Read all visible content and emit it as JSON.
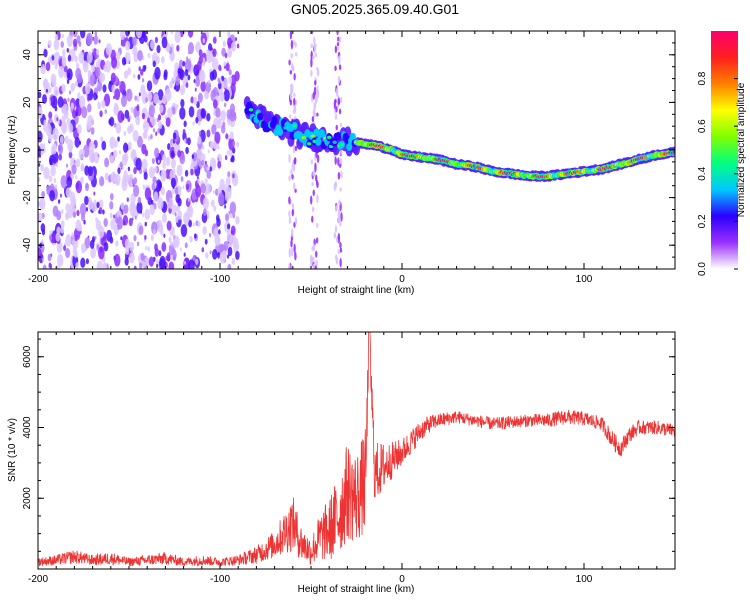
{
  "title": "GN05.2025.365.09.40.G01",
  "chart_data": [
    {
      "type": "heatmap",
      "title": "GN05.2025.365.09.40.G01",
      "xlabel": "Height of straight line (km)",
      "ylabel": "Frequency (Hz)",
      "xlim": [
        -200,
        150
      ],
      "ylim": [
        -50,
        50
      ],
      "xticks": [
        -200,
        -100,
        0,
        100
      ],
      "xtick_labels": [
        "-200",
        "-100",
        "0",
        "100"
      ],
      "yticks": [
        -40,
        -20,
        0,
        20,
        40
      ],
      "ytick_labels": [
        "-40",
        "-20",
        "0",
        "20",
        "40"
      ],
      "colorbar": {
        "label": "Normalized spectral amplitude",
        "range": [
          0,
          1
        ],
        "ticks": [
          0,
          0.2,
          0.4,
          0.6,
          0.8
        ],
        "tick_labels": [
          "0.0",
          "0.2",
          "0.4",
          "0.6",
          "0.8"
        ],
        "colors": [
          "#ffffff",
          "#9b30ff",
          "#2b00ff",
          "#00c8ff",
          "#00ff80",
          "#80ff00",
          "#ffff00",
          "#ff8000",
          "#ff1f1f",
          "#ff006e"
        ]
      },
      "ridge": {
        "x": [
          -85,
          -75,
          -65,
          -55,
          -45,
          -35,
          -25,
          -15,
          -5,
          0,
          10,
          20,
          30,
          40,
          50,
          60,
          70,
          80,
          90,
          100,
          110,
          120,
          130,
          140,
          150
        ],
        "y": [
          18,
          12,
          9,
          6,
          5,
          4,
          3,
          2,
          0,
          -2,
          -3,
          -4,
          -6,
          -7,
          -9,
          -10,
          -11,
          -11,
          -10,
          -9,
          -8,
          -6,
          -4,
          -2,
          -1
        ]
      },
      "noise_region": [
        -200,
        -90
      ],
      "vertical_streaks": [
        -60,
        -48,
        -35
      ]
    },
    {
      "type": "line",
      "xlabel": "Height of straight line (km)",
      "ylabel": "SNR (10 * v/v)",
      "xlim": [
        -200,
        150
      ],
      "ylim": [
        0,
        6700
      ],
      "xticks": [
        -200,
        -100,
        0,
        100
      ],
      "xtick_labels": [
        "-200",
        "-100",
        "0",
        "100"
      ],
      "yticks": [
        2000,
        4000,
        6000
      ],
      "ytick_labels": [
        "2000",
        "4000",
        "6000"
      ],
      "color": "#ee3333",
      "series": [
        {
          "name": "SNR",
          "x": [
            -200,
            -190,
            -180,
            -170,
            -160,
            -150,
            -140,
            -130,
            -120,
            -110,
            -100,
            -90,
            -80,
            -70,
            -65,
            -60,
            -55,
            -50,
            -45,
            -40,
            -35,
            -30,
            -25,
            -20,
            -18,
            -15,
            -10,
            -5,
            0,
            5,
            10,
            15,
            20,
            25,
            30,
            40,
            50,
            60,
            70,
            80,
            90,
            100,
            110,
            115,
            120,
            125,
            130,
            140,
            150
          ],
          "y": [
            200,
            250,
            350,
            250,
            300,
            200,
            250,
            300,
            200,
            250,
            200,
            250,
            400,
            700,
            1000,
            1300,
            700,
            500,
            900,
            1100,
            1500,
            2200,
            2000,
            2500,
            6700,
            2700,
            2900,
            3100,
            3300,
            3600,
            3900,
            4100,
            4200,
            4250,
            4300,
            4200,
            4100,
            4150,
            4200,
            4200,
            4300,
            4250,
            4100,
            3700,
            3400,
            3800,
            4000,
            4000,
            3900
          ],
          "spread": [
            120,
            150,
            200,
            150,
            180,
            120,
            150,
            180,
            120,
            150,
            120,
            150,
            250,
            400,
            600,
            800,
            500,
            400,
            700,
            900,
            1200,
            1400,
            1300,
            1500,
            600,
            900,
            700,
            500,
            400,
            350,
            300,
            250,
            200,
            200,
            180,
            180,
            180,
            180,
            180,
            200,
            220,
            200,
            200,
            250,
            250,
            220,
            200,
            200,
            200
          ]
        }
      ]
    }
  ]
}
